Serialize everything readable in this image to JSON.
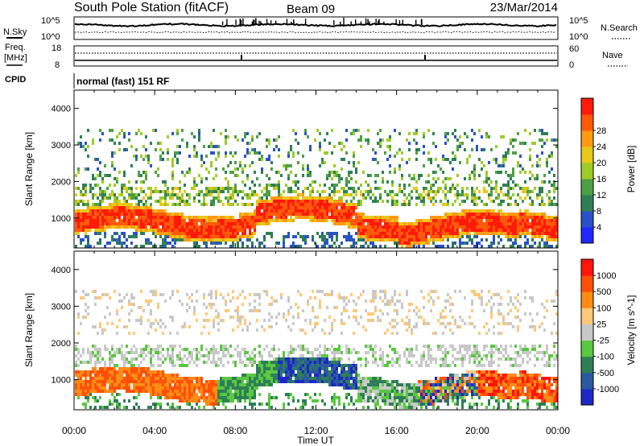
{
  "header": {
    "station_title": "South Pole Station (fitACF)",
    "beam": "Beam 09",
    "date": "23/Mar/2014"
  },
  "side_labels": {
    "nsky": "N.Sky",
    "freq_line1": "Freq.",
    "freq_line2": "[MHz]",
    "cpid": "CPID",
    "nsearch": "N.Search",
    "nave": "Nave"
  },
  "top_panels": {
    "nsky_ticks": [
      "10^5",
      "10^0"
    ],
    "nsearch_ticks": [
      "10^5",
      "10^0"
    ],
    "freq_ticks": [
      "18",
      "8"
    ],
    "nave_ticks": [
      "60",
      "0"
    ],
    "cpid_text": "normal (fast) 151 RF"
  },
  "chart_data": [
    {
      "type": "heatmap",
      "title": "",
      "xlabel": "",
      "ylabel": "Slant Range [km]",
      "xlim": [
        0,
        24
      ],
      "ylim": [
        180,
        4500
      ],
      "yticks": [
        1000,
        2000,
        3000,
        4000
      ],
      "colorbar": {
        "label": "Power [dB]",
        "ticks": [
          "4",
          "8",
          "12",
          "16",
          "20",
          "24",
          "28"
        ],
        "colors": [
          "#1e28ff",
          "#2a52c8",
          "#2e7f56",
          "#4ea045",
          "#9fcc28",
          "#e8c818",
          "#ff9a14",
          "#ff5a0a",
          "#ff1a0a"
        ]
      }
    },
    {
      "type": "heatmap",
      "title": "",
      "xlabel": "Time UT",
      "ylabel": "Slant Range [km]",
      "xlim": [
        0,
        24
      ],
      "ylim": [
        180,
        4500
      ],
      "yticks": [
        1000,
        2000,
        3000,
        4000
      ],
      "xtick_labels": [
        "00:00",
        "04:00",
        "08:00",
        "12:00",
        "16:00",
        "20:00",
        "00:00"
      ],
      "colorbar": {
        "label": "Velocity [m s^-1]",
        "ticks": [
          "1000",
          "500",
          "100",
          "25",
          "-25",
          "-100",
          "-500",
          "-1000"
        ],
        "colors": [
          "#1e28c8",
          "#2a5aa0",
          "#2e7f56",
          "#5ac840",
          "#c8c8c8",
          "#ffc878",
          "#ff8c14",
          "#ff500a",
          "#ff140a"
        ]
      }
    }
  ]
}
